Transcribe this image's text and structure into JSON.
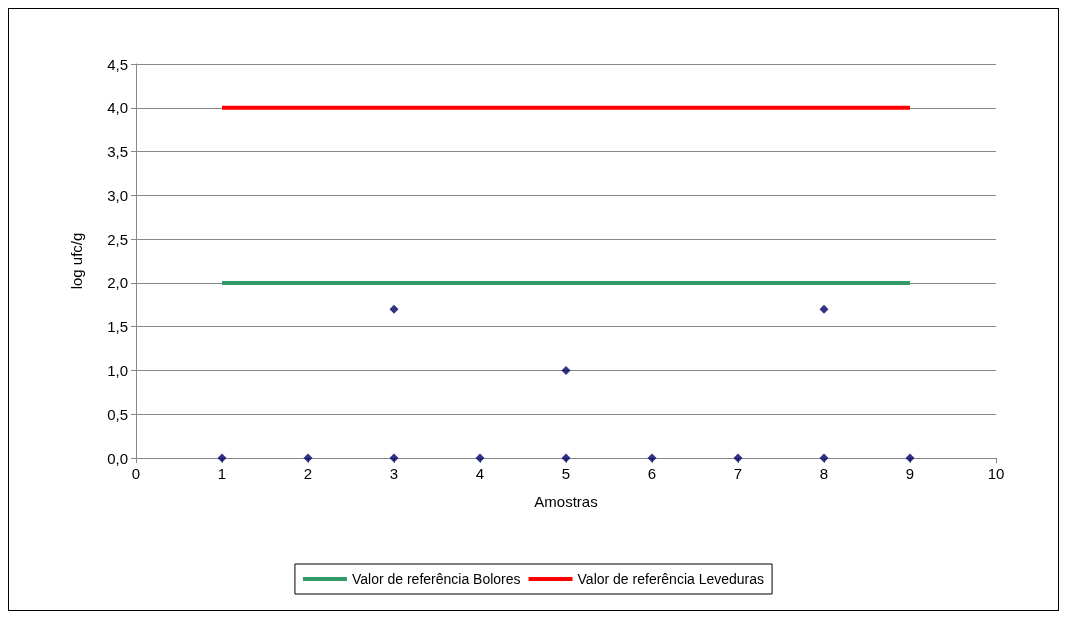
{
  "chart_data": {
    "type": "scatter",
    "xlabel": "Amostras",
    "ylabel": "log ufc/g",
    "xlim": [
      0,
      10
    ],
    "xticks": [
      0,
      1,
      2,
      3,
      4,
      5,
      6,
      7,
      8,
      9,
      10
    ],
    "ylim": [
      0,
      4.5
    ],
    "yticks": [
      {
        "value": 0,
        "label": "0,0"
      },
      {
        "value": 0.5,
        "label": "0,5"
      },
      {
        "value": 1,
        "label": "1,0"
      },
      {
        "value": 1.5,
        "label": "1,5"
      },
      {
        "value": 2,
        "label": "2,0"
      },
      {
        "value": 2.5,
        "label": "2,5"
      },
      {
        "value": 3,
        "label": "3,0"
      },
      {
        "value": 3.5,
        "label": "3,5"
      },
      {
        "value": 4,
        "label": "4,0"
      },
      {
        "value": 4.5,
        "label": "4,5"
      }
    ],
    "grid": "y",
    "legend": "bottom",
    "series": [
      {
        "marker": "diamond",
        "color": "#000066",
        "x": [
          1,
          2,
          3,
          4,
          5,
          6,
          7,
          8,
          9,
          3,
          5,
          8
        ],
        "values": [
          0,
          0,
          0,
          0,
          0,
          0,
          0,
          0,
          0,
          1.7,
          1.0,
          1.7
        ]
      },
      {
        "type": "line",
        "name": "Valor de referência Bolores",
        "marker": "none",
        "color": "#339966",
        "line_style": "solid",
        "x": [
          1,
          9
        ],
        "values": [
          2,
          2
        ]
      },
      {
        "type": "line",
        "name": "Valor de referência Leveduras",
        "marker": "none",
        "color": "#ff0000",
        "line_style": "solid",
        "x": [
          1,
          9
        ],
        "values": [
          4,
          4
        ]
      }
    ]
  }
}
